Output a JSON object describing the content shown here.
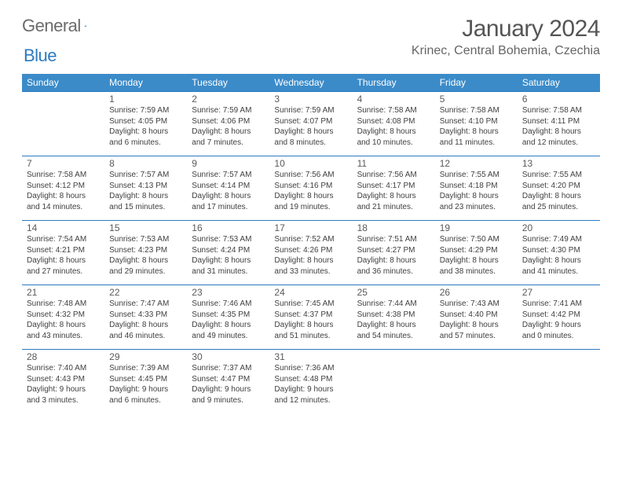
{
  "brand": {
    "part1": "General",
    "part2": "Blue"
  },
  "title": "January 2024",
  "location": "Krinec, Central Bohemia, Czechia",
  "colors": {
    "header_bg": "#3b8bc9",
    "header_text": "#ffffff",
    "border": "#2d7bc0",
    "body_text": "#404040",
    "daynum": "#5a5a5a",
    "brand_gray": "#6b6b6b",
    "brand_blue": "#2d7bc0",
    "page_bg": "#ffffff"
  },
  "typography": {
    "title_fontsize": 30,
    "location_fontsize": 16,
    "weekday_fontsize": 12,
    "daynum_fontsize": 12,
    "info_fontsize": 10
  },
  "weekdays": [
    "Sunday",
    "Monday",
    "Tuesday",
    "Wednesday",
    "Thursday",
    "Friday",
    "Saturday"
  ],
  "first_weekday_offset": 1,
  "days_in_month": 31,
  "days": [
    {
      "n": 1,
      "sunrise": "7:59 AM",
      "sunset": "4:05 PM",
      "daylight": "8 hours and 6 minutes."
    },
    {
      "n": 2,
      "sunrise": "7:59 AM",
      "sunset": "4:06 PM",
      "daylight": "8 hours and 7 minutes."
    },
    {
      "n": 3,
      "sunrise": "7:59 AM",
      "sunset": "4:07 PM",
      "daylight": "8 hours and 8 minutes."
    },
    {
      "n": 4,
      "sunrise": "7:58 AM",
      "sunset": "4:08 PM",
      "daylight": "8 hours and 10 minutes."
    },
    {
      "n": 5,
      "sunrise": "7:58 AM",
      "sunset": "4:10 PM",
      "daylight": "8 hours and 11 minutes."
    },
    {
      "n": 6,
      "sunrise": "7:58 AM",
      "sunset": "4:11 PM",
      "daylight": "8 hours and 12 minutes."
    },
    {
      "n": 7,
      "sunrise": "7:58 AM",
      "sunset": "4:12 PM",
      "daylight": "8 hours and 14 minutes."
    },
    {
      "n": 8,
      "sunrise": "7:57 AM",
      "sunset": "4:13 PM",
      "daylight": "8 hours and 15 minutes."
    },
    {
      "n": 9,
      "sunrise": "7:57 AM",
      "sunset": "4:14 PM",
      "daylight": "8 hours and 17 minutes."
    },
    {
      "n": 10,
      "sunrise": "7:56 AM",
      "sunset": "4:16 PM",
      "daylight": "8 hours and 19 minutes."
    },
    {
      "n": 11,
      "sunrise": "7:56 AM",
      "sunset": "4:17 PM",
      "daylight": "8 hours and 21 minutes."
    },
    {
      "n": 12,
      "sunrise": "7:55 AM",
      "sunset": "4:18 PM",
      "daylight": "8 hours and 23 minutes."
    },
    {
      "n": 13,
      "sunrise": "7:55 AM",
      "sunset": "4:20 PM",
      "daylight": "8 hours and 25 minutes."
    },
    {
      "n": 14,
      "sunrise": "7:54 AM",
      "sunset": "4:21 PM",
      "daylight": "8 hours and 27 minutes."
    },
    {
      "n": 15,
      "sunrise": "7:53 AM",
      "sunset": "4:23 PM",
      "daylight": "8 hours and 29 minutes."
    },
    {
      "n": 16,
      "sunrise": "7:53 AM",
      "sunset": "4:24 PM",
      "daylight": "8 hours and 31 minutes."
    },
    {
      "n": 17,
      "sunrise": "7:52 AM",
      "sunset": "4:26 PM",
      "daylight": "8 hours and 33 minutes."
    },
    {
      "n": 18,
      "sunrise": "7:51 AM",
      "sunset": "4:27 PM",
      "daylight": "8 hours and 36 minutes."
    },
    {
      "n": 19,
      "sunrise": "7:50 AM",
      "sunset": "4:29 PM",
      "daylight": "8 hours and 38 minutes."
    },
    {
      "n": 20,
      "sunrise": "7:49 AM",
      "sunset": "4:30 PM",
      "daylight": "8 hours and 41 minutes."
    },
    {
      "n": 21,
      "sunrise": "7:48 AM",
      "sunset": "4:32 PM",
      "daylight": "8 hours and 43 minutes."
    },
    {
      "n": 22,
      "sunrise": "7:47 AM",
      "sunset": "4:33 PM",
      "daylight": "8 hours and 46 minutes."
    },
    {
      "n": 23,
      "sunrise": "7:46 AM",
      "sunset": "4:35 PM",
      "daylight": "8 hours and 49 minutes."
    },
    {
      "n": 24,
      "sunrise": "7:45 AM",
      "sunset": "4:37 PM",
      "daylight": "8 hours and 51 minutes."
    },
    {
      "n": 25,
      "sunrise": "7:44 AM",
      "sunset": "4:38 PM",
      "daylight": "8 hours and 54 minutes."
    },
    {
      "n": 26,
      "sunrise": "7:43 AM",
      "sunset": "4:40 PM",
      "daylight": "8 hours and 57 minutes."
    },
    {
      "n": 27,
      "sunrise": "7:41 AM",
      "sunset": "4:42 PM",
      "daylight": "9 hours and 0 minutes."
    },
    {
      "n": 28,
      "sunrise": "7:40 AM",
      "sunset": "4:43 PM",
      "daylight": "9 hours and 3 minutes."
    },
    {
      "n": 29,
      "sunrise": "7:39 AM",
      "sunset": "4:45 PM",
      "daylight": "9 hours and 6 minutes."
    },
    {
      "n": 30,
      "sunrise": "7:37 AM",
      "sunset": "4:47 PM",
      "daylight": "9 hours and 9 minutes."
    },
    {
      "n": 31,
      "sunrise": "7:36 AM",
      "sunset": "4:48 PM",
      "daylight": "9 hours and 12 minutes."
    }
  ],
  "labels": {
    "sunrise": "Sunrise:",
    "sunset": "Sunset:",
    "daylight": "Daylight:"
  }
}
